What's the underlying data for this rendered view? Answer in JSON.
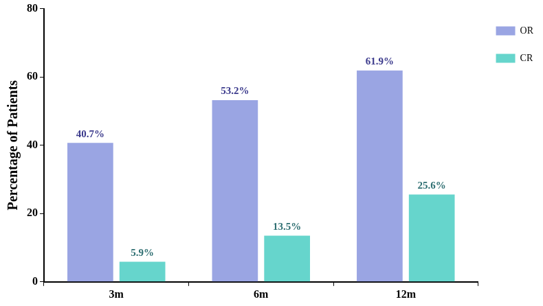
{
  "chart_data": {
    "type": "bar",
    "categories": [
      "3m",
      "6m",
      "12m"
    ],
    "series": [
      {
        "name": "OR",
        "color": "#9aa5e3",
        "values": [
          40.7,
          53.2,
          61.9
        ],
        "value_labels": [
          "40.7%",
          "53.2%",
          "61.9%"
        ]
      },
      {
        "name": "CR",
        "color": "#66d5cc",
        "values": [
          5.9,
          13.5,
          25.6
        ],
        "value_labels": [
          "5.9%",
          "13.5%",
          "25.6%"
        ]
      }
    ],
    "y_label": "Percentage of Patients",
    "ylim": [
      0,
      80
    ],
    "yticks": [
      0,
      20,
      40,
      60,
      80
    ],
    "grid": false,
    "legend": "top right",
    "data_labels": true
  }
}
